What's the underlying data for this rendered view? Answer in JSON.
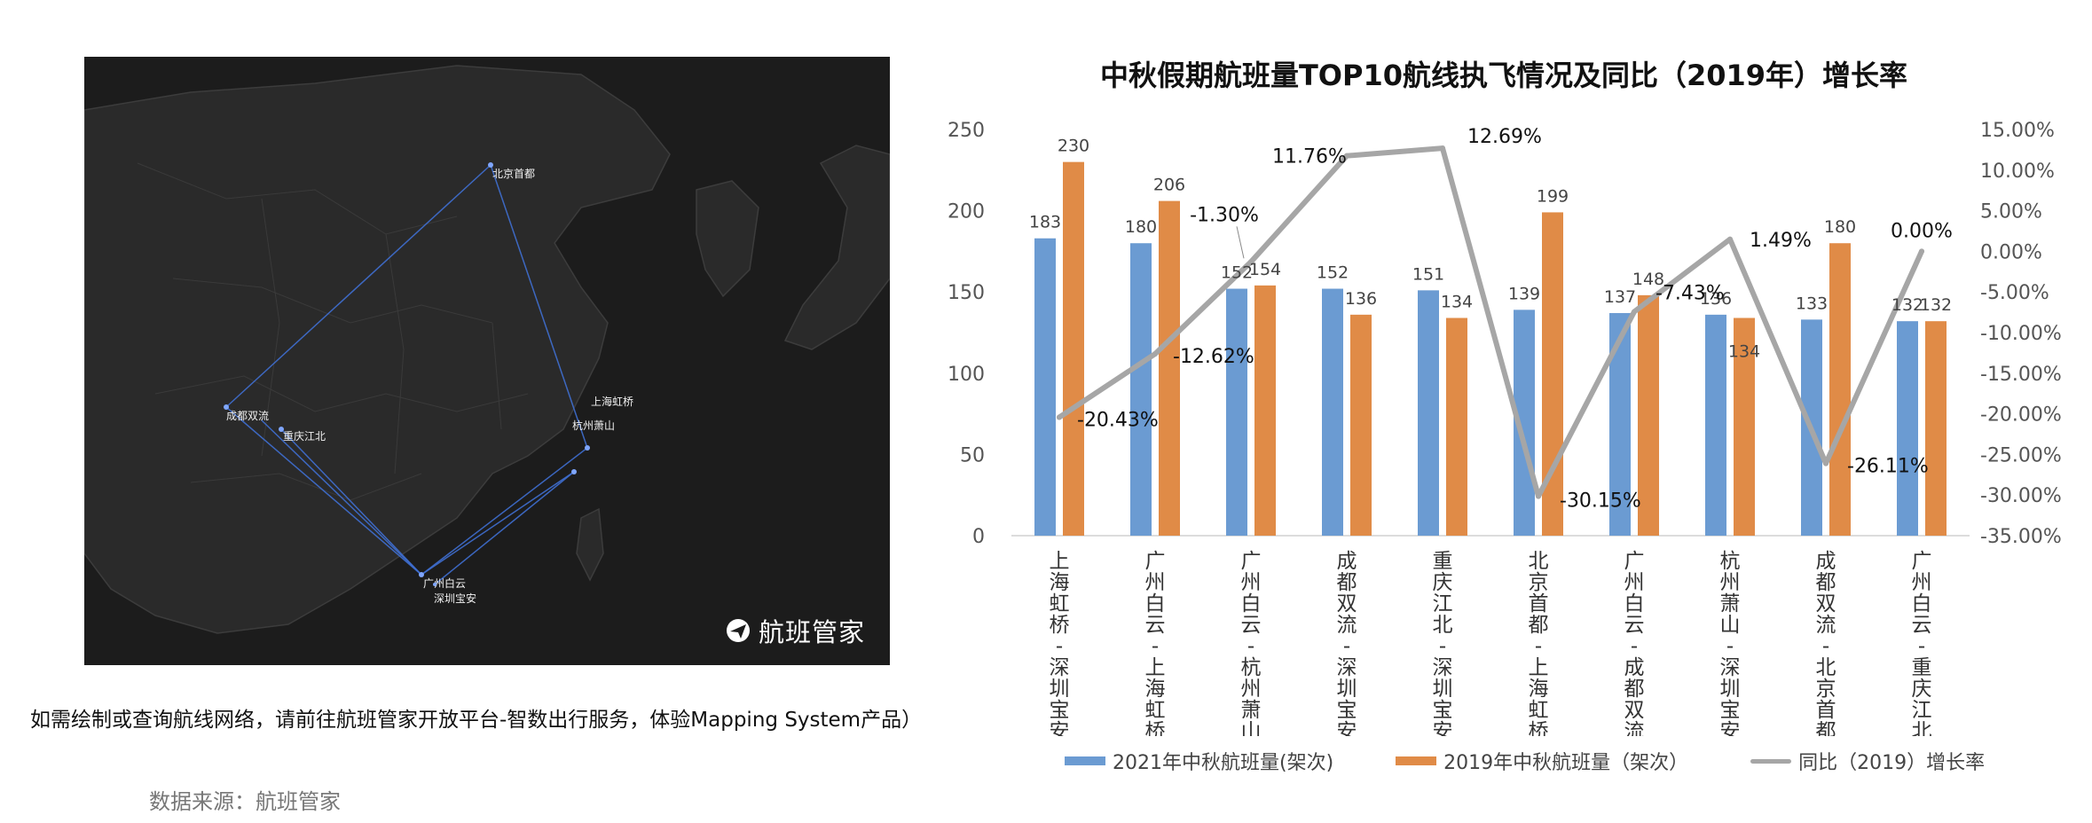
{
  "map": {
    "brand": "航班管家",
    "brand_logo_icon": "paper-plane-circle-icon",
    "cities": [
      {
        "name": "北京首都"
      },
      {
        "name": "上海虹桥"
      },
      {
        "name": "杭州萧山"
      },
      {
        "name": "成都双流"
      },
      {
        "name": "重庆江北"
      },
      {
        "name": "广州白云"
      },
      {
        "name": "深圳宝安"
      }
    ],
    "colors": {
      "background": "#1c1c1c",
      "route": "#3f6fd1",
      "land_border": "#3c3c3c"
    }
  },
  "note": "如需绘制或查询航线网络，请前往航班管家开放平台-智数出行服务，体验Mapping System产品）",
  "source": "数据来源：航班管家",
  "chart_data": {
    "type": "bar",
    "title": "中秋假期航班量TOP10航线执飞情况及同比（2019年）增长率",
    "categories": [
      "上海虹桥-深圳宝安",
      "广州白云-上海虹桥",
      "广州白云-杭州萧山",
      "成都双流-深圳宝安",
      "重庆江北-深圳宝安",
      "北京首都-上海虹桥",
      "广州白云-成都双流",
      "杭州萧山-深圳宝安",
      "成都双流-北京首都",
      "广州白云-重庆江北"
    ],
    "series": [
      {
        "name": "2021年中秋航班量(架次)",
        "type": "bar",
        "axis": "left",
        "color": "#6b9bd2",
        "values": [
          183,
          180,
          152,
          152,
          151,
          139,
          137,
          136,
          133,
          132
        ],
        "labels": [
          "183",
          "180",
          "152",
          "152",
          "151",
          "139",
          "137",
          "136",
          "133",
          "132"
        ]
      },
      {
        "name": "2019年中秋航班量（架次）",
        "type": "bar",
        "axis": "left",
        "color": "#e08b47",
        "values": [
          230,
          206,
          154,
          136,
          134,
          199,
          148,
          134,
          180,
          132
        ],
        "labels": [
          "230",
          "206",
          "154",
          "136",
          "134",
          "199",
          "148",
          "134",
          "180",
          "132"
        ]
      },
      {
        "name": "同比（2019）增长率",
        "type": "line",
        "axis": "right",
        "color": "#a6a6a6",
        "values": [
          -20.43,
          -12.62,
          -1.3,
          11.76,
          12.69,
          -30.15,
          -7.43,
          1.49,
          -26.11,
          0.0
        ],
        "labels": [
          "-20.43%",
          "-12.62%",
          "-1.30%",
          "11.76%",
          "12.69%",
          "-30.15%",
          "-7.43%",
          "1.49%",
          "-26.11%",
          "0.00%"
        ]
      }
    ],
    "y_left": {
      "min": 0,
      "max": 250,
      "ticks": [
        "0",
        "50",
        "100",
        "150",
        "200",
        "250"
      ]
    },
    "y_right": {
      "min": -35,
      "max": 15,
      "ticks": [
        "-35.00%",
        "-30.00%",
        "-25.00%",
        "-20.00%",
        "-15.00%",
        "-10.00%",
        "-5.00%",
        "0.00%",
        "5.00%",
        "10.00%",
        "15.00%"
      ]
    },
    "grid": false,
    "legend_position": "bottom"
  }
}
